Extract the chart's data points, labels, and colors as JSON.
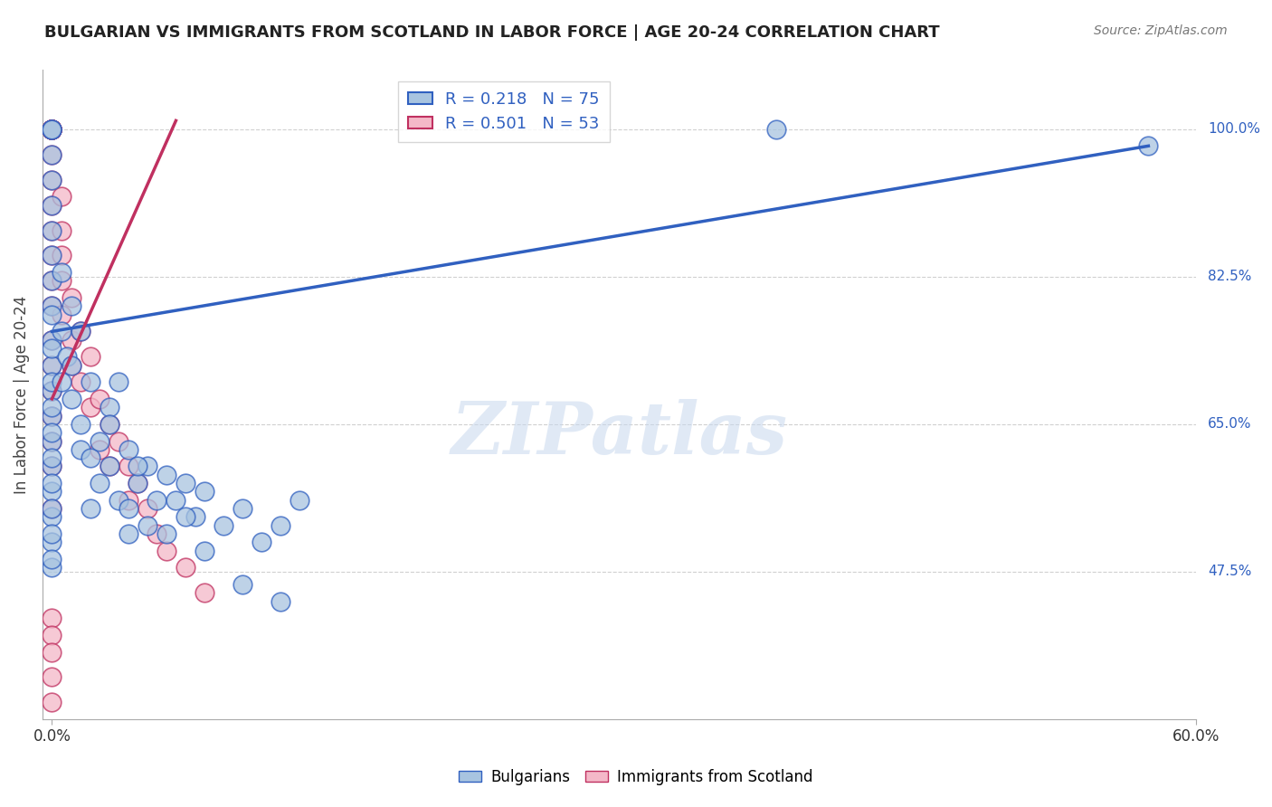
{
  "title": "BULGARIAN VS IMMIGRANTS FROM SCOTLAND IN LABOR FORCE | AGE 20-24 CORRELATION CHART",
  "source": "Source: ZipAtlas.com",
  "ylabel": "In Labor Force | Age 20-24",
  "xlim": [
    -0.005,
    0.6
  ],
  "ylim": [
    0.3,
    1.07
  ],
  "xtick_positions": [
    0.0,
    0.6
  ],
  "xtick_labels": [
    "0.0%",
    "60.0%"
  ],
  "ytick_positions": [
    0.475,
    0.65,
    0.825,
    1.0
  ],
  "ytick_labels": [
    "47.5%",
    "65.0%",
    "82.5%",
    "100.0%"
  ],
  "blue_R": 0.218,
  "blue_N": 75,
  "pink_R": 0.501,
  "pink_N": 53,
  "blue_color": "#a8c4e0",
  "pink_color": "#f4b8c8",
  "line_blue": "#3060c0",
  "line_pink": "#c03060",
  "watermark": "ZIPatlas",
  "blue_scatter_x": [
    0.0,
    0.0,
    0.0,
    0.0,
    0.0,
    0.0,
    0.0,
    0.0,
    0.0,
    0.0,
    0.0,
    0.0,
    0.0,
    0.0,
    0.0,
    0.0,
    0.0,
    0.0,
    0.0,
    0.0,
    0.0,
    0.0,
    0.0,
    0.0,
    0.0,
    0.0,
    0.0,
    0.0,
    0.0,
    0.0,
    0.005,
    0.005,
    0.005,
    0.008,
    0.01,
    0.01,
    0.01,
    0.015,
    0.015,
    0.02,
    0.02,
    0.025,
    0.03,
    0.03,
    0.035,
    0.04,
    0.04,
    0.045,
    0.05,
    0.055,
    0.06,
    0.065,
    0.07,
    0.075,
    0.08,
    0.09,
    0.1,
    0.11,
    0.12,
    0.13,
    0.015,
    0.02,
    0.025,
    0.03,
    0.035,
    0.04,
    0.045,
    0.05,
    0.06,
    0.07,
    0.08,
    0.1,
    0.12,
    0.38,
    0.575
  ],
  "blue_scatter_y": [
    1.0,
    1.0,
    1.0,
    0.97,
    0.94,
    0.91,
    0.88,
    0.85,
    0.82,
    0.79,
    0.75,
    0.72,
    0.69,
    0.66,
    0.63,
    0.6,
    0.57,
    0.54,
    0.51,
    0.48,
    0.78,
    0.74,
    0.7,
    0.67,
    0.64,
    0.61,
    0.58,
    0.55,
    0.52,
    0.49,
    0.83,
    0.76,
    0.7,
    0.73,
    0.79,
    0.72,
    0.68,
    0.65,
    0.62,
    0.61,
    0.7,
    0.63,
    0.67,
    0.6,
    0.56,
    0.62,
    0.55,
    0.58,
    0.6,
    0.56,
    0.59,
    0.56,
    0.58,
    0.54,
    0.57,
    0.53,
    0.55,
    0.51,
    0.53,
    0.56,
    0.76,
    0.55,
    0.58,
    0.65,
    0.7,
    0.52,
    0.6,
    0.53,
    0.52,
    0.54,
    0.5,
    0.46,
    0.44,
    1.0,
    0.98
  ],
  "pink_scatter_x": [
    0.0,
    0.0,
    0.0,
    0.0,
    0.0,
    0.0,
    0.0,
    0.0,
    0.0,
    0.0,
    0.0,
    0.0,
    0.0,
    0.0,
    0.0,
    0.0,
    0.0,
    0.0,
    0.0,
    0.0,
    0.005,
    0.005,
    0.005,
    0.005,
    0.005,
    0.01,
    0.01,
    0.01,
    0.015,
    0.015,
    0.02,
    0.02,
    0.025,
    0.025,
    0.03,
    0.03,
    0.035,
    0.04,
    0.04,
    0.045,
    0.05,
    0.055,
    0.06,
    0.07,
    0.08,
    0.0,
    0.0,
    0.0,
    0.0,
    0.0,
    0.0,
    0.0,
    0.0
  ],
  "pink_scatter_y": [
    1.0,
    1.0,
    1.0,
    1.0,
    1.0,
    1.0,
    1.0,
    1.0,
    1.0,
    0.97,
    0.94,
    0.91,
    0.88,
    0.85,
    0.82,
    0.79,
    0.75,
    0.72,
    0.69,
    0.66,
    0.92,
    0.88,
    0.85,
    0.82,
    0.78,
    0.8,
    0.75,
    0.72,
    0.76,
    0.7,
    0.73,
    0.67,
    0.68,
    0.62,
    0.65,
    0.6,
    0.63,
    0.6,
    0.56,
    0.58,
    0.55,
    0.52,
    0.5,
    0.48,
    0.45,
    0.63,
    0.6,
    0.55,
    0.42,
    0.4,
    0.38,
    0.35,
    0.32
  ],
  "blue_line_x": [
    0.0,
    0.575
  ],
  "blue_line_y": [
    0.76,
    0.98
  ],
  "pink_line_x": [
    0.0,
    0.065
  ],
  "pink_line_y": [
    0.68,
    1.01
  ]
}
